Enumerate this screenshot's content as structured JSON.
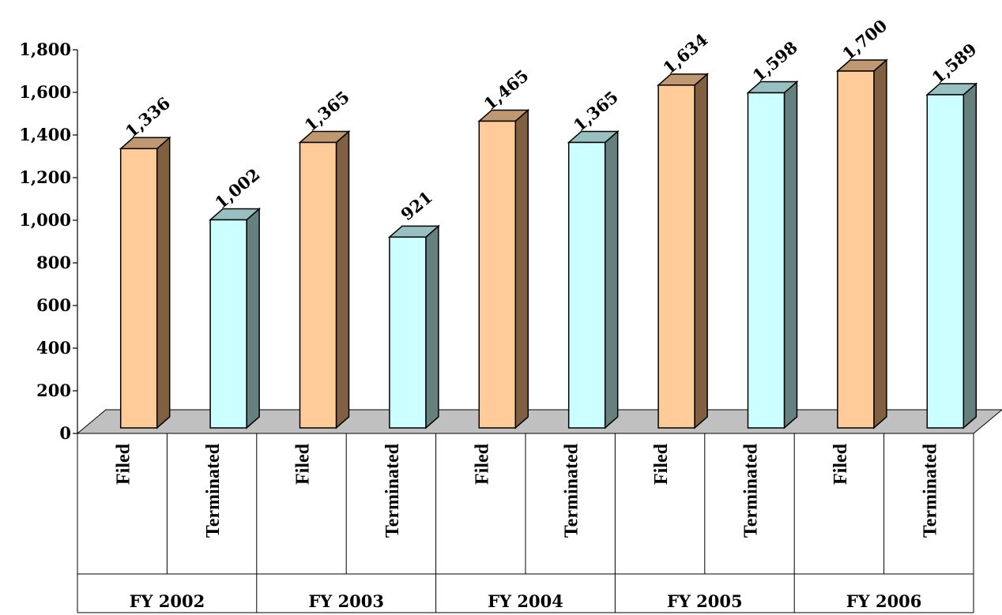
{
  "chart_data": {
    "type": "bar",
    "style": "3d-column",
    "groups": [
      "FY 2002",
      "FY 2003",
      "FY 2004",
      "FY 2005",
      "FY 2006"
    ],
    "bar_labels": [
      "Filed",
      "Terminated"
    ],
    "series": [
      {
        "name": "Filed",
        "values": [
          1336,
          1365,
          1465,
          1634,
          1700
        ]
      },
      {
        "name": "Terminated",
        "values": [
          1002,
          921,
          1365,
          1598,
          1589
        ]
      }
    ],
    "data_labels": {
      "Filed": [
        "1,336",
        "1,365",
        "1,465",
        "1,634",
        "1,700"
      ],
      "Terminated": [
        "1,002",
        "921",
        "1,365",
        "1,598",
        "1,589"
      ]
    },
    "y_ticks": [
      "0",
      "200",
      "400",
      "600",
      "800",
      "1,000",
      "1,200",
      "1,400",
      "1,600",
      "1,800"
    ],
    "ylim": [
      0,
      1800
    ],
    "title": "",
    "xlabel": "",
    "ylabel": "",
    "grid": false,
    "legend": "none",
    "colors": {
      "Filed": {
        "front": "#FFCC99",
        "side": "#806040",
        "top": "#C09870"
      },
      "Terminated": {
        "front": "#CCFFFF",
        "side": "#668080",
        "top": "#99C0C0"
      },
      "floor": "#C0C0C0"
    }
  }
}
